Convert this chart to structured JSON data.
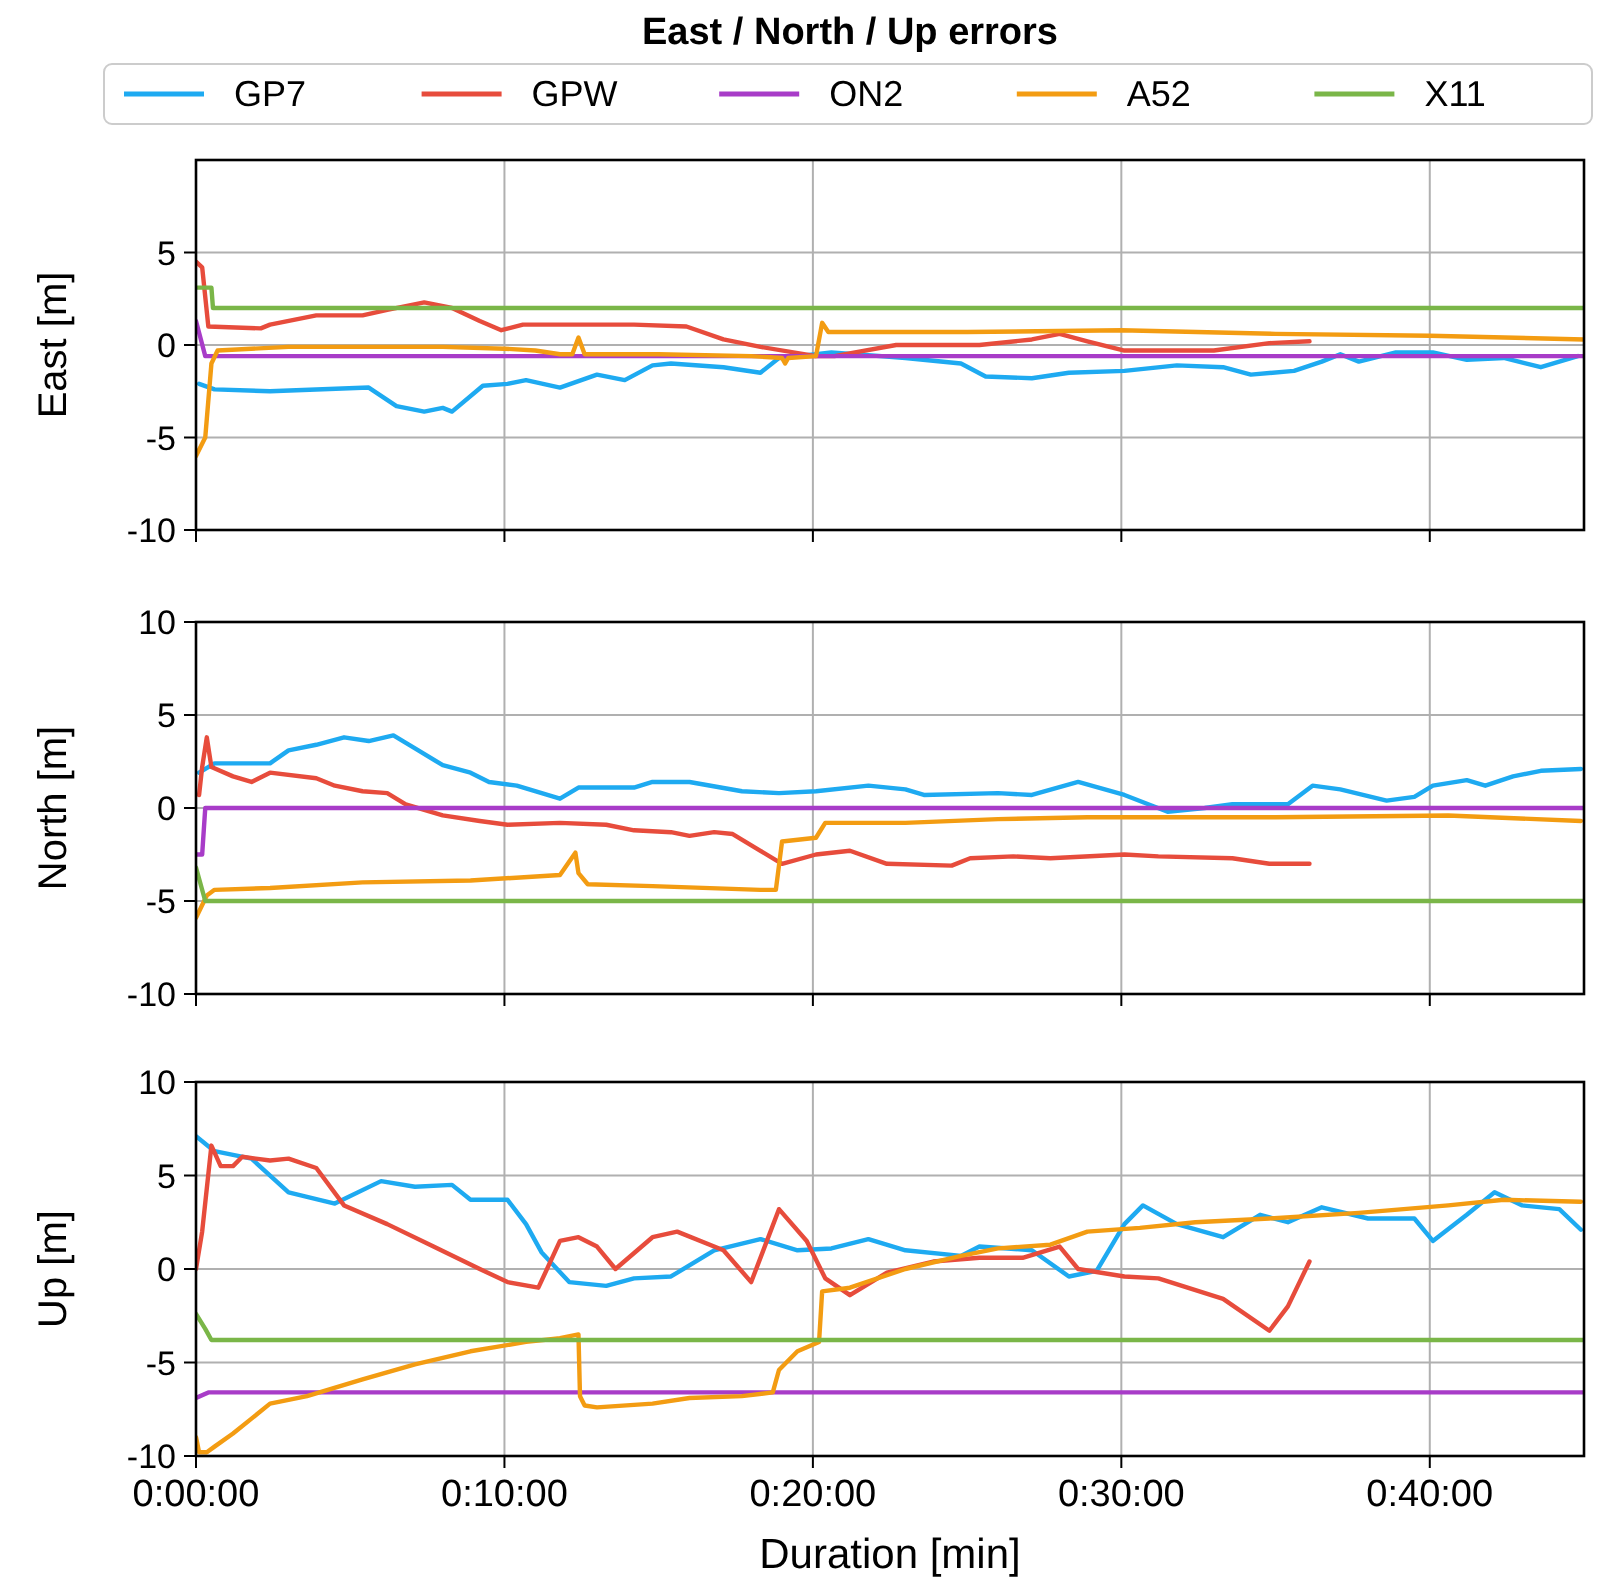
{
  "chart_data": [
    {
      "type": "line",
      "title": "East / North / Up errors",
      "ylabel": "East [m]",
      "xlim": [
        0,
        45
      ],
      "ylim": [
        -10,
        10
      ],
      "yticks": [
        -10,
        -5,
        0,
        5
      ],
      "xticks": [
        {
          "value": 0,
          "label": null
        },
        {
          "value": 10,
          "label": null
        },
        {
          "value": 20,
          "label": null
        },
        {
          "value": 30,
          "label": null
        },
        {
          "value": 40,
          "label": null
        }
      ],
      "tick_labels": "y",
      "grid": true,
      "legend": "top",
      "series": [
        {
          "name": "GP7",
          "color": "#1eaaf1",
          "x": [
            0.1,
            0.6,
            2.4,
            5.6,
            6.5,
            7.4,
            8.0,
            8.3,
            9.3,
            10.1,
            10.7,
            11.8,
            13.0,
            13.9,
            14.8,
            15.4,
            17.1,
            18.3,
            18.9,
            20.1,
            20.6,
            23.0,
            24.8,
            25.6,
            27.1,
            28.3,
            30.1,
            31.8,
            33.3,
            34.2,
            35.6,
            36.5,
            37.1,
            37.7,
            38.9,
            40.1,
            41.2,
            42.4,
            43.6,
            44.8
          ],
          "values": [
            -2.1,
            -2.4,
            -2.5,
            -2.3,
            -3.3,
            -3.6,
            -3.4,
            -3.6,
            -2.2,
            -2.1,
            -1.9,
            -2.3,
            -1.6,
            -1.9,
            -1.1,
            -1.0,
            -1.2,
            -1.5,
            -0.7,
            -0.5,
            -0.4,
            -0.7,
            -1.0,
            -1.7,
            -1.8,
            -1.5,
            -1.4,
            -1.1,
            -1.2,
            -1.6,
            -1.4,
            -0.9,
            -0.5,
            -0.9,
            -0.4,
            -0.4,
            -0.8,
            -0.7,
            -1.2,
            -0.6
          ]
        },
        {
          "name": "GPW",
          "color": "#e74c3c",
          "x": [
            0.0,
            0.2,
            0.4,
            2.1,
            2.4,
            3.9,
            5.4,
            6.2,
            7.4,
            8.3,
            9.2,
            9.9,
            10.6,
            12.7,
            14.2,
            15.9,
            17.1,
            18.3,
            20.1,
            20.7,
            22.7,
            23.6,
            25.4,
            27.1,
            28.0,
            28.9,
            30.1,
            31.2,
            33.0,
            34.8,
            36.1
          ],
          "values": [
            4.5,
            4.2,
            1.0,
            0.9,
            1.1,
            1.6,
            1.6,
            1.9,
            2.3,
            2.0,
            1.3,
            0.8,
            1.1,
            1.1,
            1.1,
            1.0,
            0.3,
            -0.1,
            -0.6,
            -0.6,
            0.0,
            0.0,
            0.0,
            0.3,
            0.6,
            0.2,
            -0.3,
            -0.3,
            -0.3,
            0.1,
            0.2
          ]
        },
        {
          "name": "ON2",
          "color": "#a83cc8",
          "x": [
            0,
            0.3,
            45
          ],
          "values": [
            1.3,
            -0.6,
            -0.6
          ]
        },
        {
          "name": "A52",
          "color": "#f39c12",
          "x": [
            0.0,
            0.3,
            0.5,
            0.7,
            3.0,
            8.0,
            10.0,
            11.0,
            11.8,
            12.2,
            12.4,
            12.6,
            15.0,
            18.0,
            19.0,
            19.1,
            19.2,
            20.1,
            20.3,
            20.5,
            25.0,
            30.0,
            35.0,
            40.0,
            45.0
          ],
          "values": [
            -6.0,
            -5.0,
            -1.0,
            -0.3,
            -0.1,
            -0.1,
            -0.2,
            -0.3,
            -0.5,
            -0.5,
            0.4,
            -0.5,
            -0.5,
            -0.6,
            -0.7,
            -1.0,
            -0.7,
            -0.6,
            1.2,
            0.7,
            0.7,
            0.8,
            0.6,
            0.5,
            0.3
          ]
        },
        {
          "name": "X11",
          "color": "#7ab648",
          "x": [
            0,
            0.5,
            0.55,
            45
          ],
          "values": [
            3.1,
            3.1,
            2.0,
            2.0
          ]
        }
      ]
    },
    {
      "type": "line",
      "ylabel": "North [m]",
      "xlim": [
        0,
        45
      ],
      "ylim": [
        -10,
        10
      ],
      "yticks": [
        -10,
        -5,
        0,
        5,
        10
      ],
      "xticks": [
        {
          "value": 0,
          "label": null
        },
        {
          "value": 10,
          "label": null
        },
        {
          "value": 20,
          "label": null
        },
        {
          "value": 30,
          "label": null
        },
        {
          "value": 40,
          "label": null
        }
      ],
      "tick_labels": "y",
      "grid": true,
      "series": [
        {
          "color": "#1eaaf1",
          "x": [
            0.1,
            0.6,
            2.4,
            3.0,
            3.9,
            4.8,
            5.6,
            6.4,
            7.1,
            8.0,
            8.9,
            9.5,
            10.4,
            11.8,
            12.4,
            14.2,
            14.8,
            16.0,
            17.7,
            18.9,
            20.1,
            21.8,
            23.0,
            23.6,
            26.0,
            27.1,
            28.6,
            30.1,
            31.5,
            32.7,
            33.6,
            35.4,
            36.2,
            37.1,
            38.6,
            39.5,
            40.1,
            41.2,
            41.8,
            42.7,
            43.6,
            44.9
          ],
          "values": [
            1.9,
            2.4,
            2.4,
            3.1,
            3.4,
            3.8,
            3.6,
            3.9,
            3.2,
            2.3,
            1.9,
            1.4,
            1.2,
            0.5,
            1.1,
            1.1,
            1.4,
            1.4,
            0.9,
            0.8,
            0.9,
            1.2,
            1.0,
            0.7,
            0.8,
            0.7,
            1.4,
            0.7,
            -0.2,
            0.0,
            0.2,
            0.2,
            1.2,
            1.0,
            0.4,
            0.6,
            1.2,
            1.5,
            1.2,
            1.7,
            2.0,
            2.1
          ]
        },
        {
          "color": "#e74c3c",
          "x": [
            0.1,
            0.2,
            0.35,
            0.5,
            1.2,
            1.8,
            2.4,
            3.9,
            4.5,
            5.4,
            6.2,
            6.8,
            8.0,
            9.2,
            10.1,
            11.8,
            13.3,
            14.2,
            15.4,
            16.0,
            16.8,
            17.4,
            18.3,
            19.0,
            20.1,
            21.2,
            22.4,
            24.5,
            25.1,
            26.5,
            27.7,
            30.1,
            31.2,
            33.6,
            34.8,
            36.1
          ],
          "values": [
            0.7,
            2.2,
            3.8,
            2.2,
            1.7,
            1.4,
            1.9,
            1.6,
            1.2,
            0.9,
            0.8,
            0.2,
            -0.4,
            -0.7,
            -0.9,
            -0.8,
            -0.9,
            -1.2,
            -1.3,
            -1.5,
            -1.3,
            -1.4,
            -2.3,
            -3.0,
            -2.5,
            -2.3,
            -3.0,
            -3.1,
            -2.7,
            -2.6,
            -2.7,
            -2.5,
            -2.6,
            -2.7,
            -3.0,
            -3.0
          ]
        },
        {
          "color": "#a83cc8",
          "x": [
            0,
            0.2,
            0.3,
            45
          ],
          "values": [
            -2.5,
            -2.5,
            0,
            0
          ]
        },
        {
          "color": "#f39c12",
          "x": [
            0.0,
            0.35,
            0.6,
            2.4,
            5.4,
            8.9,
            11.8,
            12.3,
            12.4,
            12.7,
            14.8,
            18.3,
            18.8,
            19.0,
            20.1,
            20.4,
            23.0,
            26.0,
            28.9,
            35.0,
            40.6,
            44.9
          ],
          "values": [
            -5.9,
            -4.7,
            -4.4,
            -4.3,
            -4.0,
            -3.9,
            -3.6,
            -2.4,
            -3.5,
            -4.1,
            -4.2,
            -4.4,
            -4.4,
            -1.8,
            -1.6,
            -0.8,
            -0.8,
            -0.6,
            -0.5,
            -0.5,
            -0.4,
            -0.7
          ]
        },
        {
          "color": "#7ab648",
          "x": [
            0,
            0.3,
            45
          ],
          "values": [
            -3.2,
            -5.0,
            -5.0
          ]
        }
      ]
    },
    {
      "type": "line",
      "ylabel": "Up [m]",
      "xlabel": "Duration [min]",
      "xlim": [
        0,
        45
      ],
      "ylim": [
        -10,
        10
      ],
      "yticks": [
        -10,
        -5,
        0,
        5,
        10
      ],
      "xticks": [
        {
          "value": 0,
          "label": "0:00:00"
        },
        {
          "value": 10,
          "label": "0:10:00"
        },
        {
          "value": 20,
          "label": "0:20:00"
        },
        {
          "value": 30,
          "label": "0:30:00"
        },
        {
          "value": 40,
          "label": "0:40:00"
        }
      ],
      "grid": true,
      "series": [
        {
          "color": "#1eaaf1",
          "x": [
            0.0,
            0.6,
            1.8,
            3.0,
            4.5,
            6.0,
            7.1,
            8.3,
            8.9,
            10.1,
            10.7,
            11.2,
            12.1,
            13.3,
            14.2,
            15.4,
            16.8,
            18.3,
            19.5,
            20.6,
            21.8,
            23.0,
            24.8,
            25.4,
            27.1,
            28.3,
            29.2,
            30.1,
            30.7,
            31.8,
            33.3,
            34.5,
            35.4,
            36.5,
            38.0,
            39.5,
            40.1,
            41.2,
            42.1,
            43.0,
            44.2,
            44.9
          ],
          "values": [
            7.1,
            6.3,
            5.9,
            4.1,
            3.5,
            4.7,
            4.4,
            4.5,
            3.7,
            3.7,
            2.4,
            0.9,
            -0.7,
            -0.9,
            -0.5,
            -0.4,
            1.0,
            1.6,
            1.0,
            1.1,
            1.6,
            1.0,
            0.7,
            1.2,
            1.0,
            -0.4,
            -0.1,
            2.4,
            3.4,
            2.4,
            1.7,
            2.9,
            2.5,
            3.3,
            2.7,
            2.7,
            1.5,
            2.9,
            4.1,
            3.4,
            3.2,
            2.1
          ]
        },
        {
          "color": "#e74c3c",
          "x": [
            0.0,
            0.2,
            0.5,
            0.8,
            1.2,
            1.5,
            2.4,
            3.0,
            3.9,
            4.8,
            6.2,
            7.7,
            9.2,
            10.1,
            11.1,
            11.8,
            12.4,
            13.0,
            13.6,
            14.8,
            15.6,
            17.1,
            18.0,
            18.9,
            19.8,
            20.4,
            21.2,
            22.4,
            23.9,
            25.4,
            26.8,
            28.0,
            28.6,
            30.1,
            31.2,
            33.3,
            34.8,
            35.4,
            36.1
          ],
          "values": [
            0.0,
            2.0,
            6.6,
            5.5,
            5.5,
            6.0,
            5.8,
            5.9,
            5.4,
            3.4,
            2.4,
            1.2,
            0.0,
            -0.7,
            -1.0,
            1.5,
            1.7,
            1.2,
            0.0,
            1.7,
            2.0,
            1.0,
            -0.7,
            3.2,
            1.5,
            -0.5,
            -1.4,
            -0.2,
            0.4,
            0.6,
            0.6,
            1.2,
            0.0,
            -0.4,
            -0.5,
            -1.6,
            -3.3,
            -2.0,
            0.4
          ]
        },
        {
          "color": "#a83cc8",
          "x": [
            0,
            0.4,
            45
          ],
          "values": [
            -6.9,
            -6.6,
            -6.6
          ]
        },
        {
          "color": "#f39c12",
          "x": [
            0.0,
            0.1,
            0.35,
            0.6,
            1.2,
            1.8,
            2.4,
            3.6,
            5.4,
            7.1,
            8.9,
            10.7,
            11.8,
            12.4,
            12.45,
            12.6,
            13.0,
            14.8,
            16.0,
            17.7,
            18.7,
            18.9,
            19.5,
            20.2,
            20.3,
            21.2,
            23.0,
            24.8,
            26.0,
            27.7,
            28.9,
            30.6,
            32.4,
            34.8,
            37.7,
            40.6,
            42.4,
            44.9
          ],
          "values": [
            -9.0,
            -9.8,
            -9.8,
            -9.5,
            -8.8,
            -8.0,
            -7.2,
            -6.8,
            -5.9,
            -5.1,
            -4.4,
            -3.9,
            -3.7,
            -3.5,
            -6.8,
            -7.3,
            -7.4,
            -7.2,
            -6.9,
            -6.8,
            -6.6,
            -5.4,
            -4.4,
            -3.9,
            -1.2,
            -1.0,
            0.0,
            0.7,
            1.1,
            1.3,
            2.0,
            2.2,
            2.5,
            2.7,
            3.0,
            3.4,
            3.7,
            3.6
          ]
        },
        {
          "color": "#7ab648",
          "x": [
            0,
            0.3,
            0.5,
            45
          ],
          "values": [
            -2.4,
            -3.2,
            -3.8,
            -3.8
          ]
        }
      ]
    }
  ]
}
